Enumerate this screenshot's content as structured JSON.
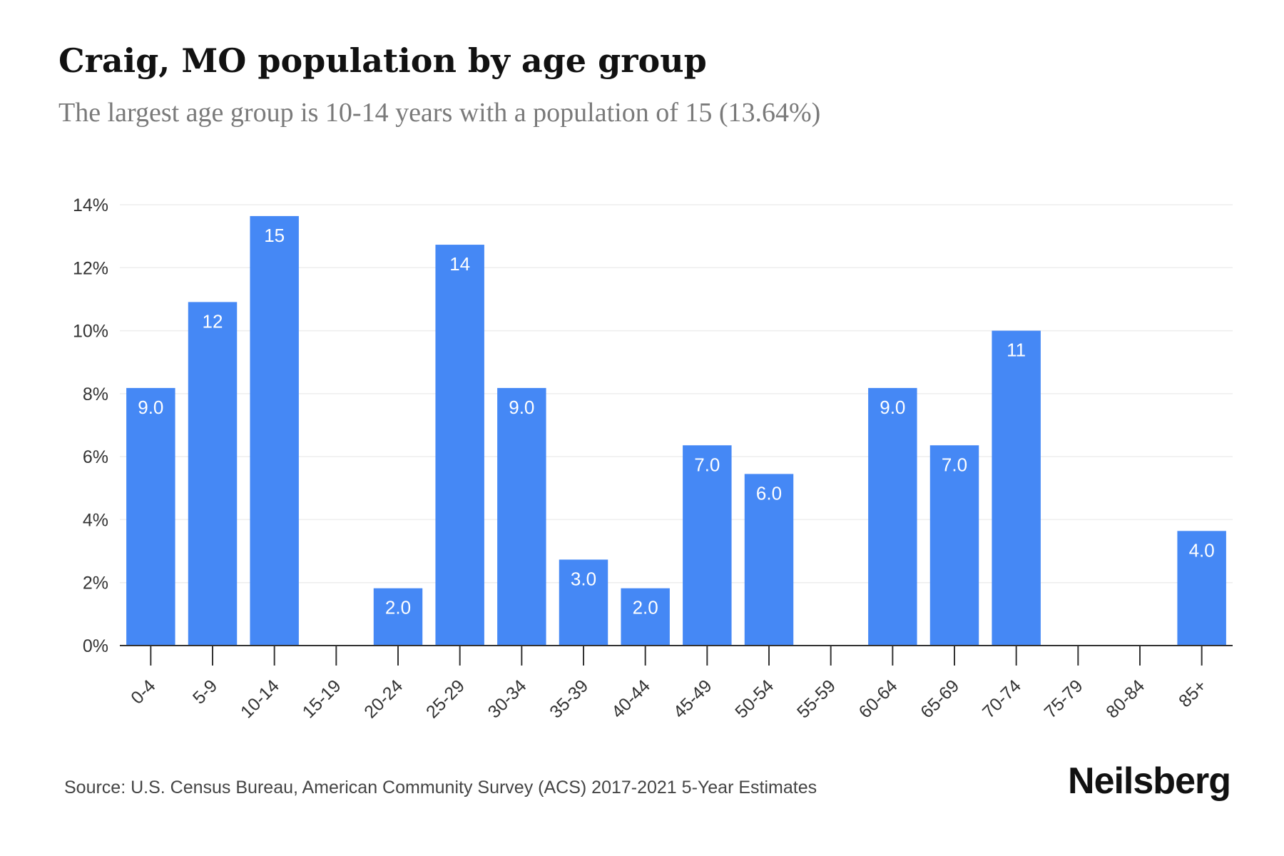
{
  "title": "Craig, MO population by age group",
  "subtitle": "The largest age group is 10-14 years with a population of 15 (13.64%)",
  "source": "Source: U.S. Census Bureau, American Community Survey (ACS) 2017-2021 5-Year Estimates",
  "brand": "Neilsberg",
  "colors": {
    "bar": "#4588f5",
    "grid": "#eeeeee",
    "axis": "#333333",
    "tick_text": "#333333",
    "bar_label": "#ffffff"
  },
  "chart_data": {
    "type": "bar",
    "categories": [
      "0-4",
      "5-9",
      "10-14",
      "15-19",
      "20-24",
      "25-29",
      "30-34",
      "35-39",
      "40-44",
      "45-49",
      "50-54",
      "55-59",
      "60-64",
      "65-69",
      "70-74",
      "75-79",
      "80-84",
      "85+"
    ],
    "values": [
      8.18,
      10.91,
      13.64,
      0,
      1.82,
      12.73,
      8.18,
      2.73,
      1.82,
      6.36,
      5.45,
      0,
      8.18,
      6.36,
      10.0,
      0,
      0,
      3.64
    ],
    "labels": [
      "9.0",
      "12",
      "15",
      "",
      "2.0",
      "14",
      "9.0",
      "3.0",
      "2.0",
      "7.0",
      "6.0",
      "",
      "9.0",
      "7.0",
      "11",
      "",
      "",
      "4.0"
    ],
    "y_ticks": [
      "0%",
      "2%",
      "4%",
      "6%",
      "8%",
      "10%",
      "12%",
      "14%"
    ],
    "ylim": [
      0,
      14
    ],
    "grid": true,
    "legend": false
  }
}
